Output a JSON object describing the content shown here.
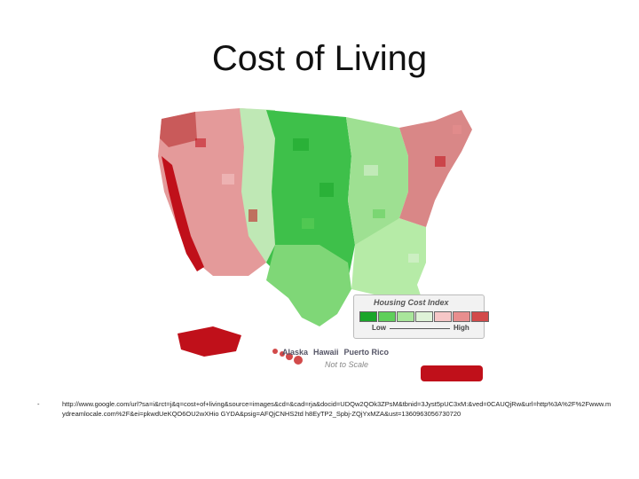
{
  "slide": {
    "title": "Cost of Living"
  },
  "map": {
    "legend": {
      "title": "Housing Cost Index",
      "low_label": "Low",
      "high_label": "High",
      "colors": [
        "#1aa52a",
        "#5fcf5a",
        "#a9e69b",
        "#dff3d8",
        "#f6c7c7",
        "#e88e8e",
        "#d24a4a",
        "#c0101a"
      ]
    },
    "inset_labels": {
      "alaska": "Alaska",
      "hawaii": "Hawaii",
      "puerto_rico": "Puerto Rico",
      "scale_note": "Not to Scale"
    }
  },
  "footnote": {
    "bullet": "-",
    "url": "http://www.google.com/url?sa=i&rct=j&q=cost+of+living&source=images&cd=&cad=rja&docid=UDQw2QOk3ZPsM&tbnid=3Jyst5pUC3xM:&ved=0CAUQjRw&url=http%3A%2F%2Fwww.mydreamlocale.com%2F&ei=pkwdUeKQO6OU2wXHio GYDA&psig=AFQjCNHS2td h8EyTP2_Spbj-ZQjYxMZA&ust=1360963056730720"
  }
}
